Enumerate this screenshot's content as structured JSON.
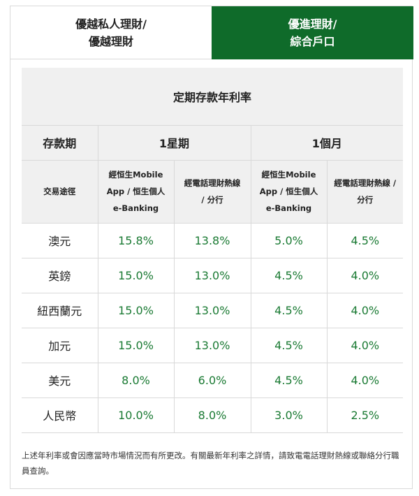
{
  "tabs": [
    {
      "label_line1": "優越私人理財/",
      "label_line2": "優越理財",
      "active": false
    },
    {
      "label_line1": "優進理財/",
      "label_line2": "綜合戶口",
      "active": true
    }
  ],
  "table": {
    "title": "定期存款年利率",
    "col_period": "存款期",
    "period_1": "1星期",
    "period_2": "1個月",
    "channel_label": "交易途徑",
    "channel_a": [
      "經恒生Mobile",
      "App / 恒生個人",
      "e-Banking"
    ],
    "channel_b": [
      "經電話理財熱線",
      "/ 分行"
    ],
    "channel_c": [
      "經恒生Mobile",
      "App / 恒生個人",
      "e-Banking"
    ],
    "channel_d": [
      "經電話理財熱線 /",
      "分行"
    ],
    "rows": [
      {
        "currency": "澳元",
        "w_online": "15.8%",
        "w_phone": "13.8%",
        "m_online": "5.0%",
        "m_phone": "4.5%"
      },
      {
        "currency": "英鎊",
        "w_online": "15.0%",
        "w_phone": "13.0%",
        "m_online": "4.5%",
        "m_phone": "4.0%"
      },
      {
        "currency": "紐西蘭元",
        "w_online": "15.0%",
        "w_phone": "13.0%",
        "m_online": "4.5%",
        "m_phone": "4.0%"
      },
      {
        "currency": "加元",
        "w_online": "15.0%",
        "w_phone": "13.0%",
        "m_online": "4.5%",
        "m_phone": "4.0%"
      },
      {
        "currency": "美元",
        "w_online": "8.0%",
        "w_phone": "6.0%",
        "m_online": "4.5%",
        "m_phone": "4.0%"
      },
      {
        "currency": "人民幣",
        "w_online": "10.0%",
        "w_phone": "8.0%",
        "m_online": "3.0%",
        "m_phone": "2.5%"
      }
    ]
  },
  "note": "上述年利率或會因應當時市場情況而有所更改。有關最新年利率之詳情，請致電電話理財熱線或聯絡分行職員查詢。",
  "colors": {
    "accent": "#0f6b2a",
    "rate_text": "#1a7a33",
    "header_bg": "#f0f0f0"
  }
}
